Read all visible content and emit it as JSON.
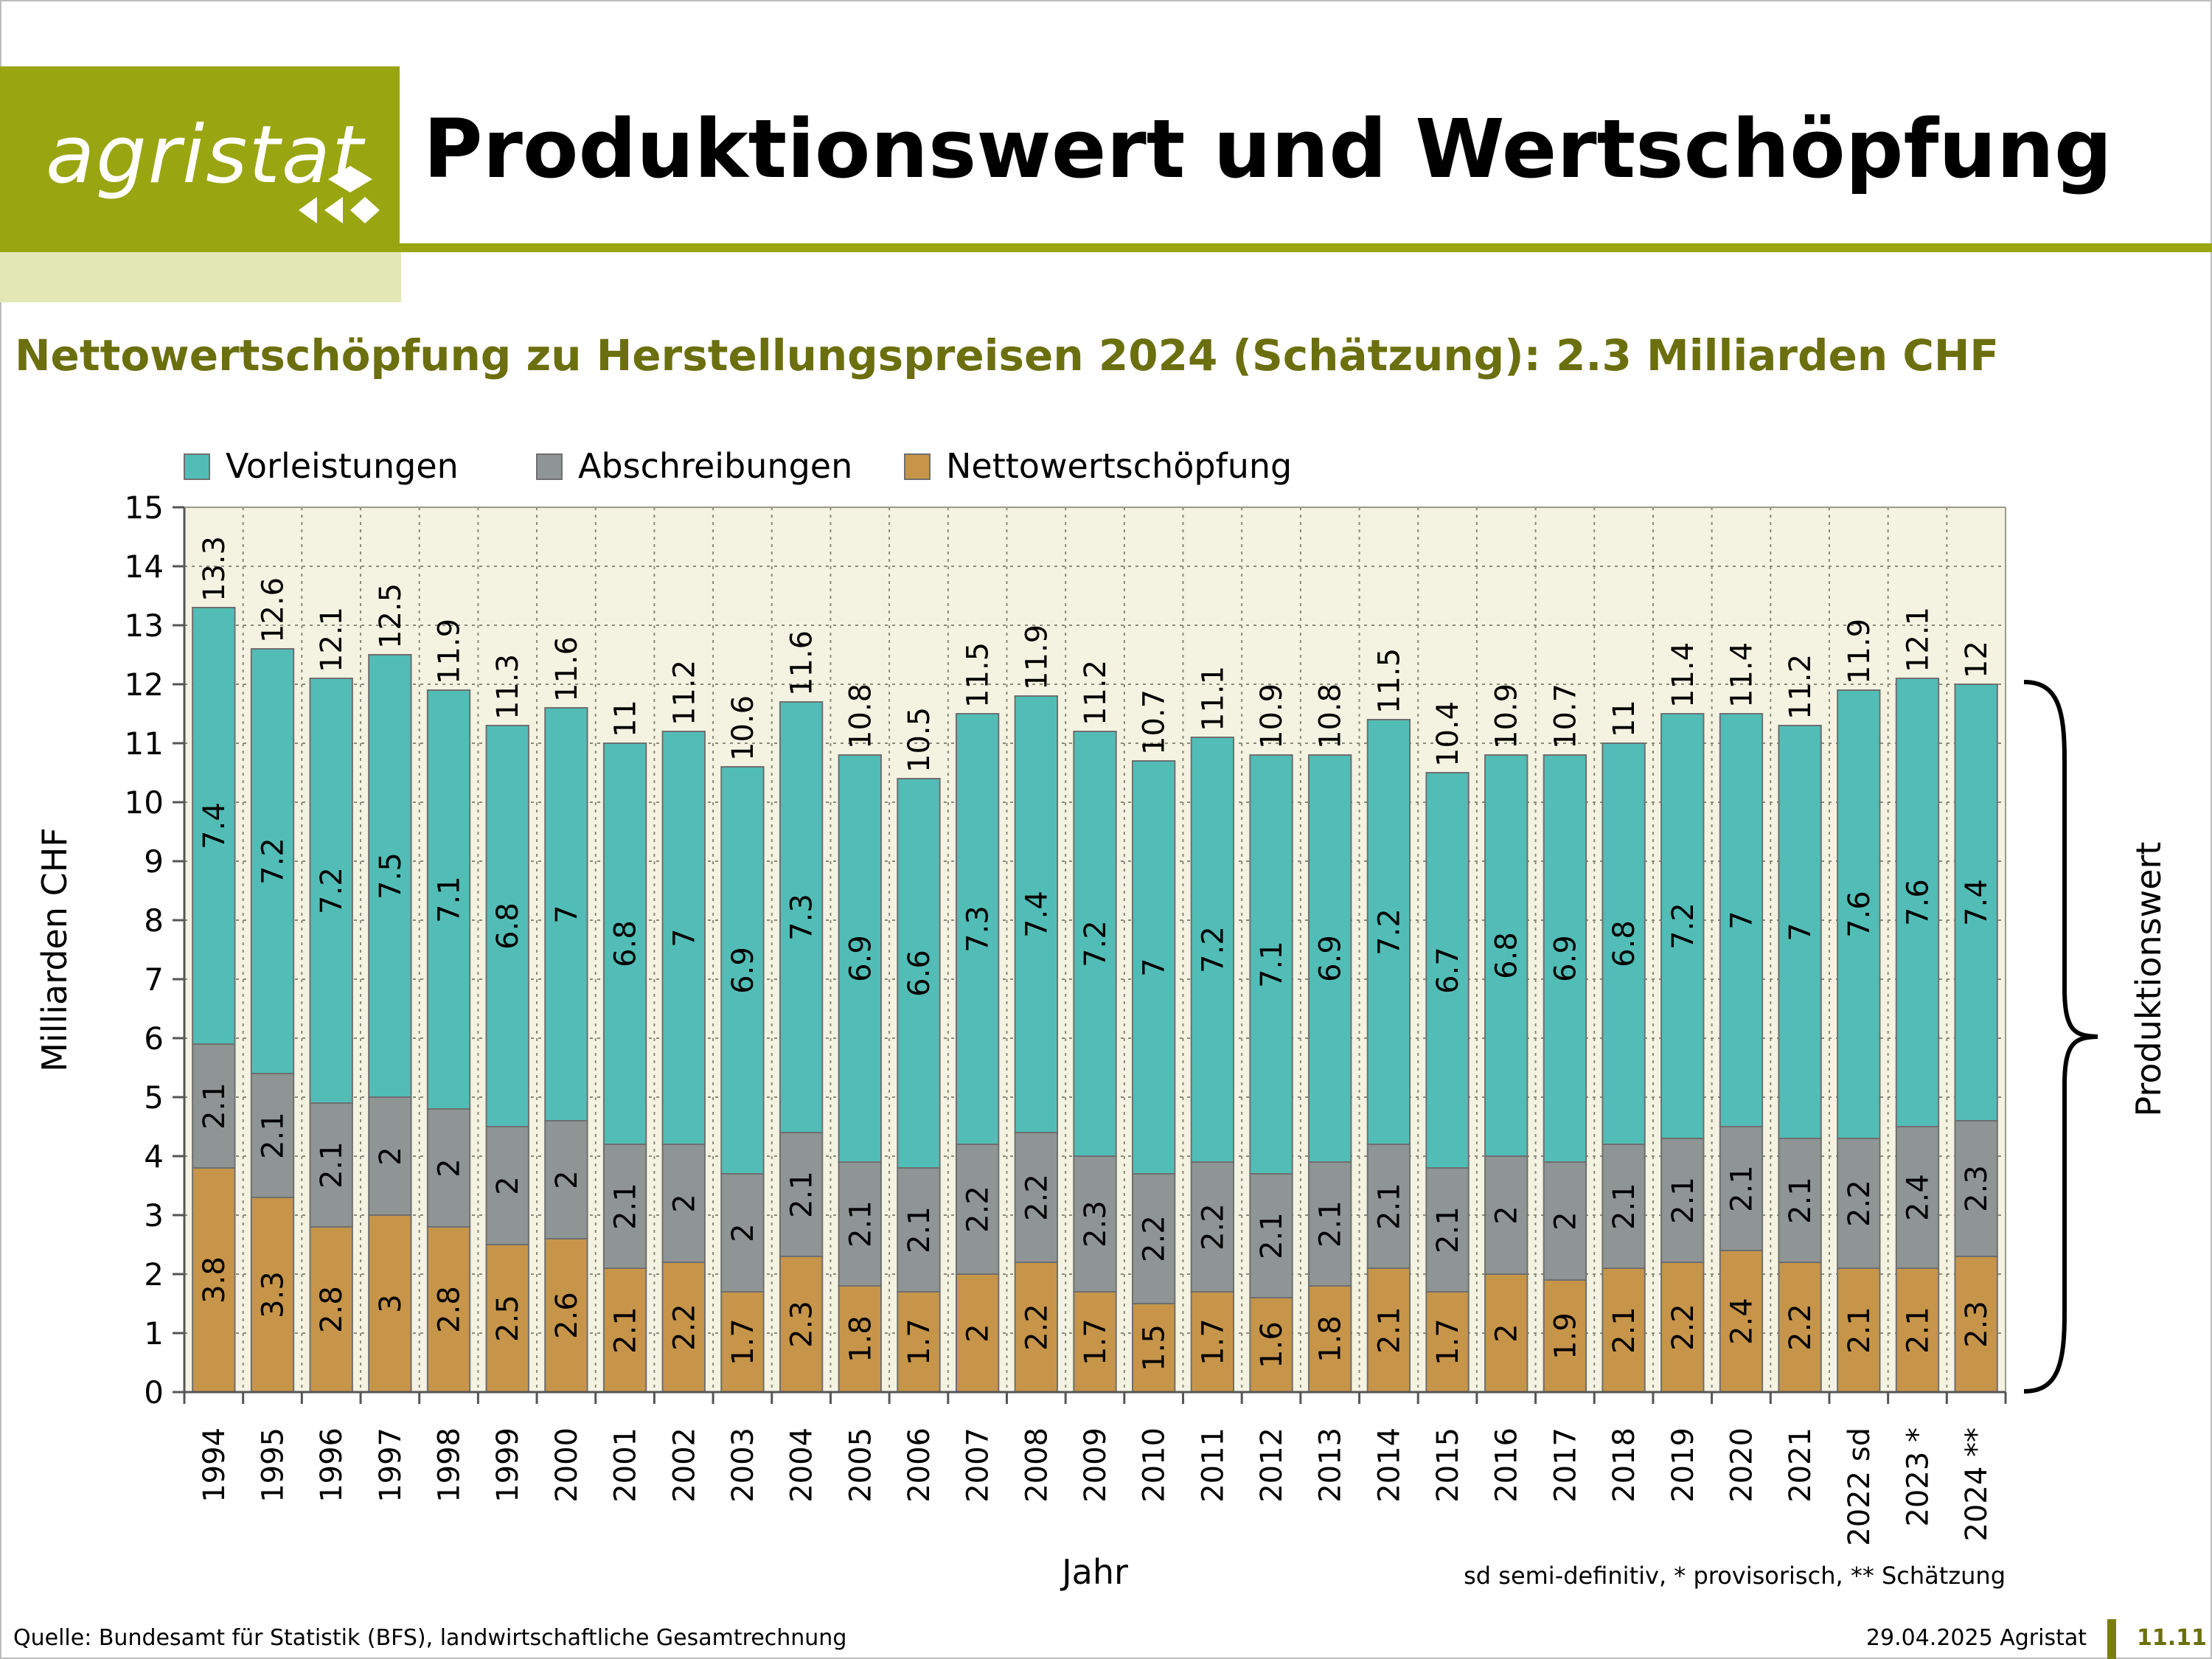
{
  "header": {
    "logo_text": "agristat",
    "title": "Produktionswert und Wertschöpfung"
  },
  "subtitle": "Nettowertschöpfung zu Herstellungspreisen 2024 (Schätzung): 2.3 Milliarden CHF",
  "footer": {
    "source": "Quelle: Bundesamt für Statistik (BFS), landwirtschaftliche Gesamtrechnung",
    "date": "29.04.2025 Agristat",
    "page": "11.11"
  },
  "colors": {
    "brand": "#9aa512",
    "brand_light": "#e3e7b6",
    "subtitle": "#6b6f0e",
    "plot_background": "#f4f3e2",
    "vorleistungen": "#52bdb6",
    "abschreibungen": "#8e9594",
    "nettowertschoepfung": "#c6954a"
  },
  "chart_data": {
    "type": "bar",
    "stacked": true,
    "xlabel": "Jahr",
    "ylabel": "Milliarden CHF",
    "ylim": [
      0,
      15
    ],
    "yticks": [
      0,
      1,
      2,
      3,
      4,
      5,
      6,
      7,
      8,
      9,
      10,
      11,
      12,
      13,
      14,
      15
    ],
    "grid": true,
    "legend_position": "top-left",
    "brace_label": "Produktionswert",
    "note": "sd semi-definitiv, * provisorisch, ** Schätzung",
    "categories": [
      "1994",
      "1995",
      "1996",
      "1997",
      "1998",
      "1999",
      "2000",
      "2001",
      "2002",
      "2003",
      "2004",
      "2005",
      "2006",
      "2007",
      "2008",
      "2009",
      "2010",
      "2011",
      "2012",
      "2013",
      "2014",
      "2015",
      "2016",
      "2017",
      "2018",
      "2019",
      "2020",
      "2021",
      "2022 sd",
      "2023 *",
      "2024 **"
    ],
    "totals": [
      13.3,
      12.6,
      12.1,
      12.5,
      11.9,
      11.3,
      11.6,
      11.0,
      11.2,
      10.6,
      11.6,
      10.8,
      10.5,
      11.5,
      11.9,
      11.2,
      10.7,
      11.1,
      10.9,
      10.8,
      11.5,
      10.4,
      10.9,
      10.7,
      11.0,
      11.4,
      11.4,
      11.2,
      11.9,
      12.1,
      12.0
    ],
    "series": [
      {
        "name": "Nettowertschöpfung",
        "color": "#c6954a",
        "values": [
          3.8,
          3.3,
          2.8,
          3.0,
          2.8,
          2.5,
          2.6,
          2.1,
          2.2,
          1.7,
          2.3,
          1.8,
          1.7,
          2.0,
          2.2,
          1.7,
          1.5,
          1.7,
          1.6,
          1.8,
          2.1,
          1.7,
          2.0,
          1.9,
          2.1,
          2.2,
          2.4,
          2.2,
          2.1,
          2.1,
          2.3
        ]
      },
      {
        "name": "Abschreibungen",
        "color": "#8e9594",
        "values": [
          2.1,
          2.1,
          2.1,
          2.0,
          2.0,
          2.0,
          2.0,
          2.1,
          2.0,
          2.0,
          2.1,
          2.1,
          2.1,
          2.2,
          2.2,
          2.3,
          2.2,
          2.2,
          2.1,
          2.1,
          2.1,
          2.1,
          2.0,
          2.0,
          2.1,
          2.1,
          2.1,
          2.1,
          2.2,
          2.4,
          2.3
        ]
      },
      {
        "name": "Vorleistungen",
        "color": "#52bdb6",
        "values": [
          7.4,
          7.2,
          7.2,
          7.5,
          7.1,
          6.8,
          7.0,
          6.8,
          7.0,
          6.9,
          7.3,
          6.9,
          6.6,
          7.3,
          7.4,
          7.2,
          7.0,
          7.2,
          7.1,
          6.9,
          7.2,
          6.7,
          6.8,
          6.9,
          6.8,
          7.2,
          7.0,
          7.0,
          7.6,
          7.6,
          7.4
        ]
      }
    ],
    "legend": [
      {
        "name": "Vorleistungen",
        "color": "#52bdb6"
      },
      {
        "name": "Abschreibungen",
        "color": "#8e9594"
      },
      {
        "name": "Nettowertschöpfung",
        "color": "#c6954a"
      }
    ]
  }
}
